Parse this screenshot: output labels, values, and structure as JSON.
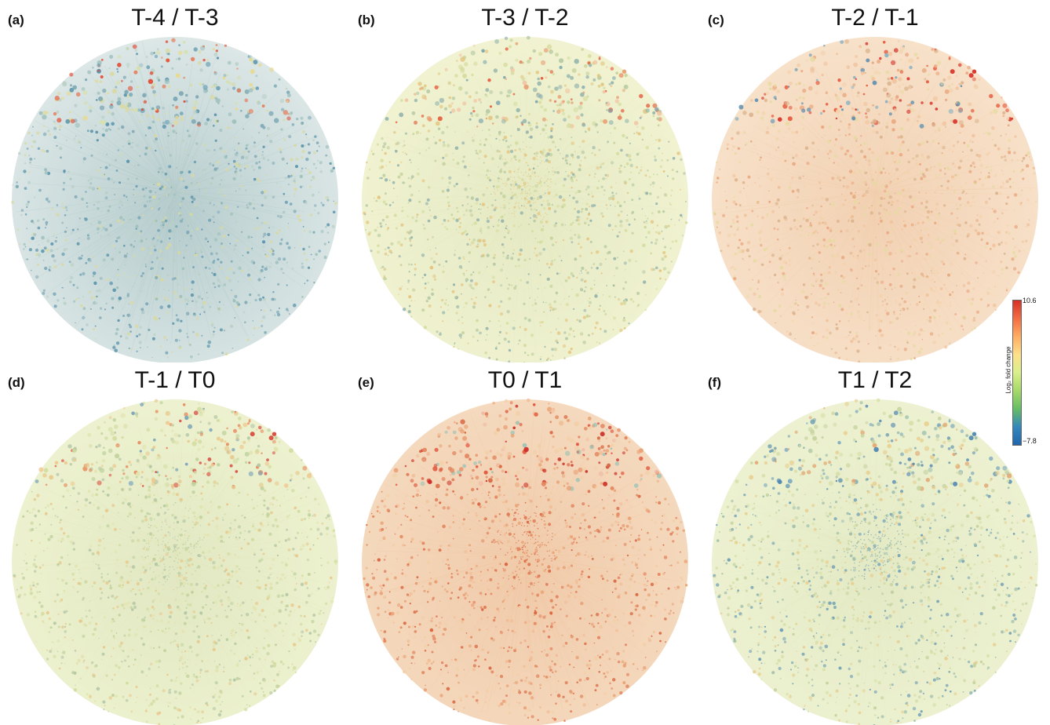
{
  "panels": [
    {
      "letter": "(a)",
      "title": "T-4 / T-3",
      "base": "#d6e3e2",
      "edge": "#a9c3c4",
      "node_colors": [
        "#5b95ad",
        "#7fa9b5",
        "#9dbfbc",
        "#b9d0c6",
        "#d9d99e"
      ],
      "accent_top": [
        "#e8d98c",
        "#d7e0a8",
        "#e24a33",
        "#e57b5a"
      ]
    },
    {
      "letter": "(b)",
      "title": "T-3 / T-2",
      "base": "#eef0c9",
      "edge": "#e1e6b9",
      "node_colors": [
        "#d6dc9e",
        "#c6d39e",
        "#b6c9a5",
        "#e4c47e",
        "#94b4ad"
      ],
      "accent_top": [
        "#e8a075",
        "#e45a3a",
        "#f2c3a2",
        "#7ea6b0"
      ]
    },
    {
      "letter": "(c)",
      "title": "T-2 / T-1",
      "base": "#f6dcc0",
      "edge": "#f0c9a6",
      "node_colors": [
        "#f0c39c",
        "#e9a77f",
        "#f4d2ad",
        "#e6dba0",
        "#dcb48d"
      ],
      "accent_top": [
        "#d73027",
        "#e6553a",
        "#5e8fb0",
        "#8ab2c2"
      ]
    },
    {
      "letter": "(d)",
      "title": "T-1 / T0",
      "base": "#eaefc7",
      "edge": "#dde4b8",
      "node_colors": [
        "#d2dca1",
        "#c0d29e",
        "#e2e3ae",
        "#b3c6a6",
        "#e8c88a"
      ],
      "accent_top": [
        "#d9453a",
        "#e78a5c",
        "#f0c890",
        "#7aa5b8"
      ]
    },
    {
      "letter": "(e)",
      "title": "T0 / T1",
      "base": "#f3d3b3",
      "edge": "#eec19b",
      "node_colors": [
        "#e9a275",
        "#e3855d",
        "#f0bd95",
        "#d9653f",
        "#f2cfa6"
      ],
      "accent_top": [
        "#cc2b24",
        "#e04f36",
        "#9ec3b5",
        "#f0b9a3"
      ]
    },
    {
      "letter": "(f)",
      "title": "T1 / T2",
      "base": "#eaefc9",
      "edge": "#dfe6bb",
      "node_colors": [
        "#c6d39f",
        "#9fbfae",
        "#d8dea8",
        "#6f9fb5",
        "#e8cf90"
      ],
      "accent_top": [
        "#4f86b3",
        "#7da8c0",
        "#e3a571",
        "#d4dba6"
      ]
    }
  ],
  "colorbar": {
    "max_label": "10.6",
    "min_label": "−7.8",
    "title": "Log₂ fold change",
    "colors": [
      "#d73027",
      "#f46d43",
      "#fdae61",
      "#fee08b",
      "#d9ef8b",
      "#a6d96a",
      "#66bd63",
      "#3288bd",
      "#2166ac"
    ]
  }
}
